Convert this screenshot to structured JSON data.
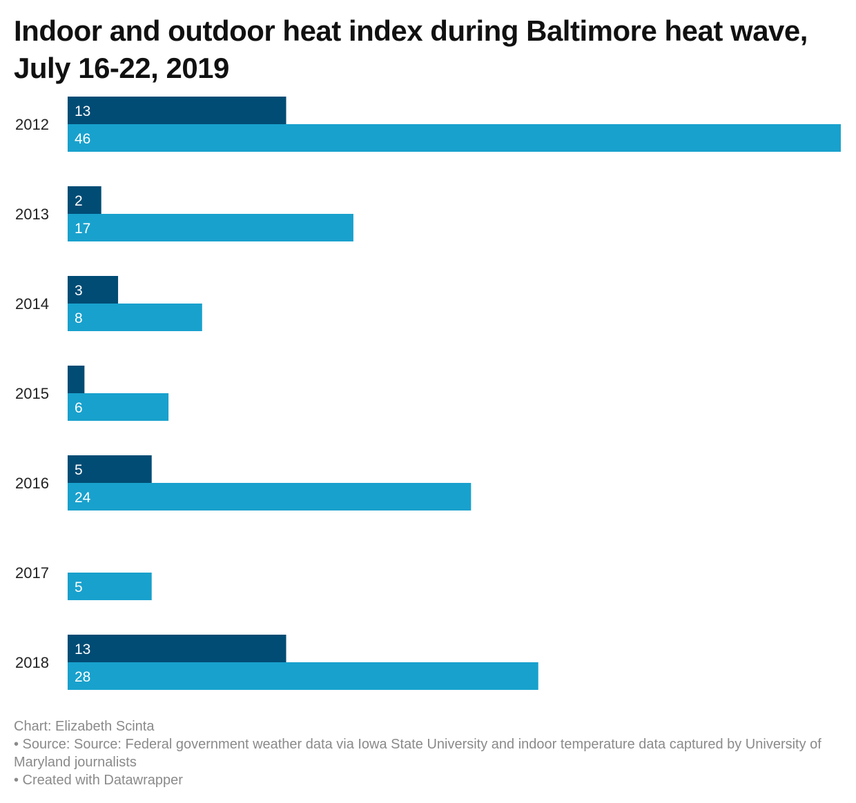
{
  "title": "Indoor and outdoor heat index during Baltimore heat wave, July 16-22, 2019",
  "footer": {
    "credit": "Chart: Elizabeth Scinta",
    "source": "• Source: Source: Federal government weather data via Iowa State University and indoor temperature data captured by University of Maryland journalists",
    "created_with": "• Created with Datawrapper"
  },
  "colors": {
    "series_dark": "#004c74",
    "series_light": "#18a1cd",
    "label_text": "#ffffff",
    "category_text": "#222222"
  },
  "chart_data": {
    "type": "bar",
    "orientation": "horizontal",
    "title": "Indoor and outdoor heat index during Baltimore heat wave, July 16-22, 2019",
    "categories": [
      "2012",
      "2013",
      "2014",
      "2015",
      "2016",
      "2017",
      "2018"
    ],
    "series": [
      {
        "values": [
          13,
          2,
          3,
          1,
          5,
          0,
          13
        ],
        "labels": [
          "13",
          "2",
          "3",
          "",
          "5",
          "",
          "13"
        ]
      },
      {
        "values": [
          46,
          17,
          8,
          6,
          24,
          5,
          28
        ],
        "labels": [
          "46",
          "17",
          "8",
          "6",
          "24",
          "5",
          "28"
        ]
      }
    ],
    "xlim": [
      0,
      46
    ],
    "grid": false,
    "legend": "none"
  }
}
